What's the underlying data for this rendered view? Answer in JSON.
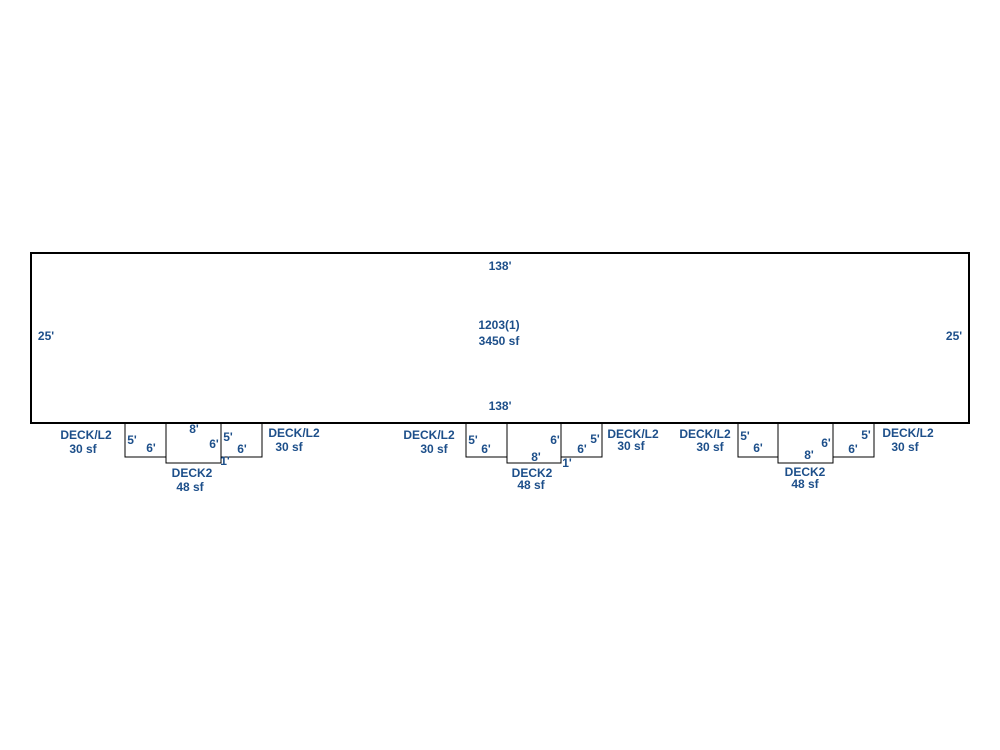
{
  "building": {
    "top": "138'",
    "bottom": "138'",
    "left": "25'",
    "right": "25'",
    "label": "1203(1)",
    "area": "3450 sf"
  },
  "groups": [
    {
      "left_deck": {
        "label": "DECK/L2",
        "area": "30 sf",
        "dims": [
          "5'",
          "6'"
        ]
      },
      "center_deck": {
        "label": "DECK2",
        "area": "48 sf",
        "dims": [
          "8'",
          "6'",
          "1'"
        ]
      },
      "right_deck": {
        "label": "DECK/L2",
        "area": "30 sf",
        "dims": [
          "5'",
          "6'"
        ]
      }
    },
    {
      "left_deck": {
        "label": "DECK/L2",
        "area": "30 sf",
        "dims": [
          "5'",
          "6'"
        ]
      },
      "center_deck": {
        "label": "DECK2",
        "area": "48 sf",
        "dims": [
          "6'",
          "8'",
          "1'"
        ]
      },
      "right_deck": {
        "label": "DECK/L2",
        "area": "30 sf",
        "dims": [
          "6'",
          "5'"
        ]
      }
    },
    {
      "left_deck": {
        "label": "DECK/L2",
        "area": "30 sf",
        "dims": [
          "5'",
          "6'"
        ]
      },
      "center_deck": {
        "label": "DECK2",
        "area": "48 sf",
        "dims": [
          "8'",
          "6'"
        ]
      },
      "right_deck": {
        "label": "DECK/L2",
        "area": "30 sf",
        "dims": [
          "5'",
          "6'"
        ]
      }
    }
  ]
}
